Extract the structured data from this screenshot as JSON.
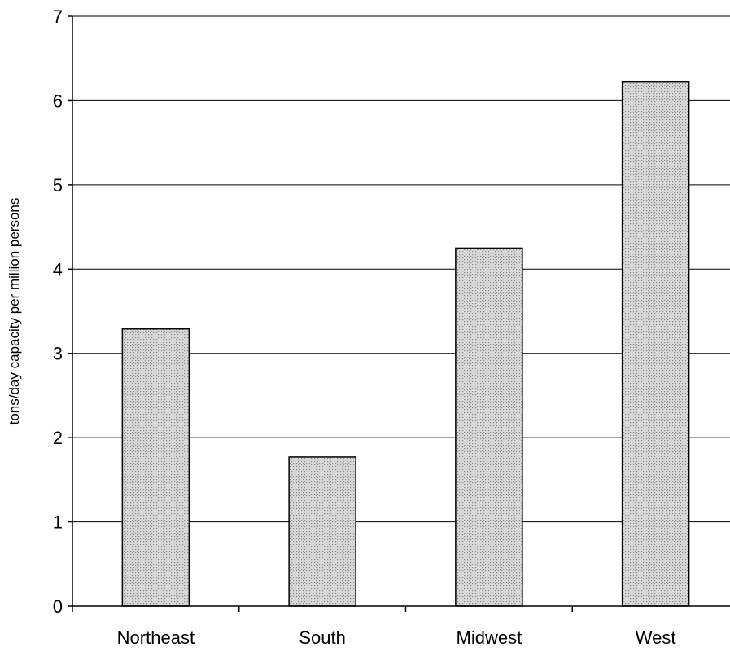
{
  "chart_data": {
    "type": "bar",
    "title": "",
    "xlabel": "",
    "ylabel": "tons/day capacity per million persons",
    "categories": [
      "Northeast",
      "South",
      "Midwest",
      "West"
    ],
    "values": [
      3.29,
      1.77,
      4.25,
      6.22
    ],
    "ylim": [
      0,
      7
    ],
    "yticks": [
      0,
      1,
      2,
      3,
      4,
      5,
      6,
      7
    ],
    "grid": "horizontal",
    "legend": "none",
    "bar_fill": "#d9d9d9",
    "bar_dot": "#8c8c8c",
    "bar_stroke": "#000000",
    "axis_color": "#000000",
    "grid_color": "#000000"
  }
}
